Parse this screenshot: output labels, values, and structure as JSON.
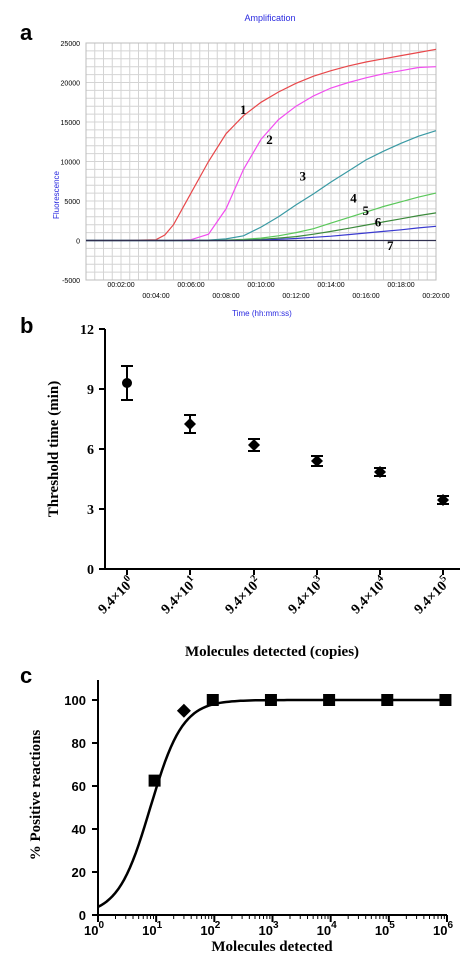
{
  "panels": {
    "a": "a",
    "b": "b",
    "c": "c"
  },
  "chart_data": [
    {
      "type": "line",
      "title": "Amplification",
      "xlabel": "Time (hh:mm:ss)",
      "ylabel": "Fluorescence",
      "x_unit": "minutes",
      "xlim": [
        0,
        20
      ],
      "ylim": [
        -5000,
        25000
      ],
      "grid": true,
      "y_ticks": [
        "25000",
        "20000",
        "15000",
        "10000",
        "5000",
        "0",
        "-5000"
      ],
      "x_ticks": [
        "00:02:00",
        "00:04:00",
        "00:06:00",
        "00:08:00",
        "00:10:00",
        "00:12:00",
        "00:14:00",
        "00:16:00",
        "00:18:00",
        "00:20:00"
      ],
      "x": [
        0,
        2,
        4,
        4.5,
        5,
        6,
        7,
        8,
        9,
        10,
        11,
        12,
        13,
        14,
        15,
        16,
        17,
        18,
        19,
        20
      ],
      "series": [
        {
          "name": "1",
          "color": "#e8474a",
          "values": [
            0,
            0,
            100,
            700,
            2000,
            6000,
            10000,
            13500,
            15800,
            17500,
            18800,
            19900,
            20800,
            21500,
            22100,
            22600,
            23000,
            23400,
            23800,
            24200
          ]
        },
        {
          "name": "2",
          "color": "#f24ef0",
          "values": [
            0,
            0,
            0,
            0,
            0,
            100,
            800,
            4000,
            9000,
            12800,
            15300,
            17000,
            18300,
            19300,
            20000,
            20600,
            21100,
            21500,
            21900,
            22000
          ]
        },
        {
          "name": "3",
          "color": "#3a9aa4",
          "values": [
            0,
            0,
            0,
            0,
            0,
            0,
            50,
            200,
            600,
            1700,
            3000,
            4500,
            5900,
            7400,
            8800,
            10200,
            11300,
            12300,
            13200,
            13900
          ]
        },
        {
          "name": "4",
          "color": "#5ac85a",
          "values": [
            0,
            0,
            0,
            0,
            0,
            0,
            0,
            50,
            150,
            300,
            600,
            1000,
            1500,
            2200,
            2900,
            3600,
            4300,
            4900,
            5500,
            6000
          ]
        },
        {
          "name": "5",
          "color": "#3c8a3c",
          "values": [
            0,
            0,
            0,
            0,
            0,
            0,
            0,
            0,
            50,
            150,
            300,
            500,
            800,
            1150,
            1550,
            1950,
            2350,
            2750,
            3150,
            3500
          ]
        },
        {
          "name": "6",
          "color": "#3a3ad0",
          "values": [
            0,
            0,
            0,
            0,
            0,
            0,
            0,
            0,
            0,
            50,
            150,
            250,
            400,
            550,
            750,
            950,
            1150,
            1350,
            1600,
            1800
          ]
        },
        {
          "name": "7",
          "color": "#303050",
          "values": [
            0,
            0,
            0,
            0,
            0,
            0,
            0,
            0,
            0,
            0,
            0,
            0,
            0,
            0,
            0,
            0,
            0,
            0,
            0,
            0
          ]
        }
      ]
    },
    {
      "type": "scatter",
      "xlabel": "Molecules detected (copies)",
      "ylabel": "Threshold time (min)",
      "ylim": [
        0,
        12
      ],
      "y_ticks": [
        "0",
        "3",
        "6",
        "9",
        "12"
      ],
      "categories": [
        {
          "mantissa": "9.4×10",
          "exp": "0"
        },
        {
          "mantissa": "9.4×10",
          "exp": "1"
        },
        {
          "mantissa": "9.4×10",
          "exp": "2"
        },
        {
          "mantissa": "9.4×10",
          "exp": "3"
        },
        {
          "mantissa": "9.4×10",
          "exp": "4"
        },
        {
          "mantissa": "9.4×10",
          "exp": "5"
        }
      ],
      "values": [
        9.3,
        7.25,
        6.2,
        5.4,
        4.85,
        3.45
      ],
      "errors": [
        0.85,
        0.45,
        0.3,
        0.25,
        0.2,
        0.2
      ],
      "markers": [
        "circle",
        "diamond",
        "diamond",
        "diamond",
        "diamond",
        "diamond"
      ]
    },
    {
      "type": "scatter",
      "xlabel": "Molecules detected",
      "ylabel": "% Positive reactions",
      "x_scale": "log",
      "xlim": [
        1,
        1000000
      ],
      "ylim": [
        0,
        100
      ],
      "y_ticks": [
        "0",
        "20",
        "40",
        "60",
        "80",
        "100"
      ],
      "x_ticks": [
        {
          "base": "10",
          "exp": "0"
        },
        {
          "base": "10",
          "exp": "1"
        },
        {
          "base": "10",
          "exp": "2"
        },
        {
          "base": "10",
          "exp": "3"
        },
        {
          "base": "10",
          "exp": "4"
        },
        {
          "base": "10",
          "exp": "5"
        },
        {
          "base": "10",
          "exp": "6"
        }
      ],
      "points": [
        {
          "x": 9.4,
          "y": 62.5,
          "marker": "square"
        },
        {
          "x": 30,
          "y": 95,
          "marker": "diamond"
        },
        {
          "x": 94,
          "y": 100,
          "marker": "square"
        },
        {
          "x": 940,
          "y": 100,
          "marker": "square"
        },
        {
          "x": 9400,
          "y": 100,
          "marker": "square"
        },
        {
          "x": 94000,
          "y": 100,
          "marker": "square"
        },
        {
          "x": 940000,
          "y": 100,
          "marker": "square"
        }
      ],
      "fit": "sigmoid"
    }
  ]
}
